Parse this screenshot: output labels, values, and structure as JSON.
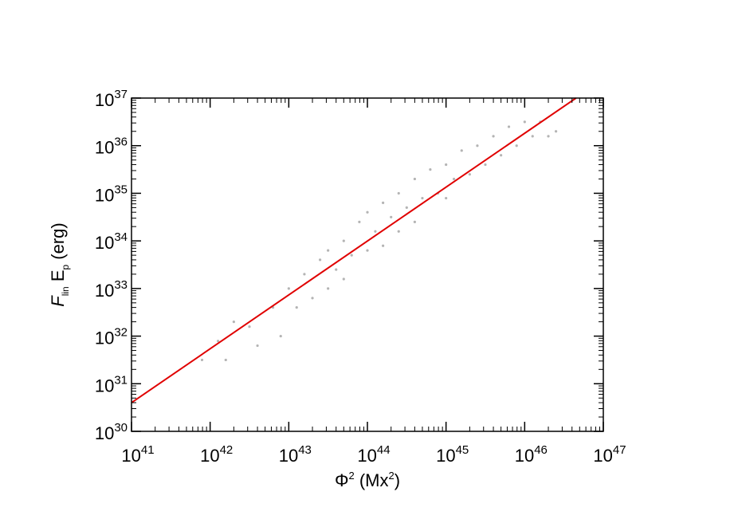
{
  "chart_data": {
    "type": "scatter",
    "xlabel_parts": [
      {
        "text": "Φ"
      },
      {
        "text": "2",
        "sup": true
      },
      {
        "text": " (Mx"
      },
      {
        "text": "2",
        "sup": true
      },
      {
        "text": ")"
      }
    ],
    "ylabel_parts": [
      {
        "text": "F",
        "italic": true
      },
      {
        "text": "lin",
        "sub": true
      },
      {
        "text": " E"
      },
      {
        "text": "p",
        "sub": true
      },
      {
        "text": " (erg)"
      }
    ],
    "xscale": "log",
    "yscale": "log",
    "minor_ticks": true,
    "xlim": [
      1e+41,
      1e+47
    ],
    "ylim": [
      1e+30,
      1e+37
    ],
    "xticks": [
      {
        "value": 1e+41,
        "label": "10",
        "exponent": "41"
      },
      {
        "value": 1e+42,
        "label": "10",
        "exponent": "42"
      },
      {
        "value": 1e+43,
        "label": "10",
        "exponent": "43"
      },
      {
        "value": 1e+44,
        "label": "10",
        "exponent": "44"
      },
      {
        "value": 1e+45,
        "label": "10",
        "exponent": "45"
      },
      {
        "value": 1e+46,
        "label": "10",
        "exponent": "46"
      },
      {
        "value": 1e+47,
        "label": "10",
        "exponent": "47"
      }
    ],
    "yticks": [
      {
        "value": 1e+30,
        "label": "10",
        "exponent": "30"
      },
      {
        "value": 1e+31,
        "label": "10",
        "exponent": "31"
      },
      {
        "value": 1e+32,
        "label": "10",
        "exponent": "32"
      },
      {
        "value": 1e+33,
        "label": "10",
        "exponent": "33"
      },
      {
        "value": 1e+34,
        "label": "10",
        "exponent": "34"
      },
      {
        "value": 1e+35,
        "label": "10",
        "exponent": "35"
      },
      {
        "value": 1e+36,
        "label": "10",
        "exponent": "36"
      },
      {
        "value": 1e+37,
        "label": "10",
        "exponent": "37"
      }
    ],
    "points": {
      "color": "#b4b4b4",
      "x": [
        7.9e+41,
        1.26e+42,
        1.58e+42,
        2e+42,
        3.16e+42,
        4e+42,
        6.3e+42,
        7.9e+42,
        1e+43,
        1.26e+43,
        1.58e+43,
        2e+43,
        2.5e+43,
        3.16e+43,
        3.16e+43,
        4e+43,
        5e+43,
        5e+43,
        6.3e+43,
        7.9e+43,
        1e+44,
        1e+44,
        1.26e+44,
        1.58e+44,
        1.58e+44,
        2e+44,
        2.5e+44,
        2.5e+44,
        3.16e+44,
        4e+44,
        4e+44,
        5e+44,
        6.3e+44,
        7.9e+44,
        1e+45,
        1e+45,
        1.26e+45,
        1.58e+45,
        2e+45,
        2.5e+45,
        3.16e+45,
        4e+45,
        5e+45,
        6.3e+45,
        7.9e+45,
        1e+46,
        1.26e+46,
        1.58e+46,
        2e+46,
        2.5e+46
      ],
      "y": [
        3.16e+31,
        7.9e+31,
        3.16e+31,
        2e+32,
        1.58e+32,
        6.3e+31,
        4e+32,
        1e+32,
        1e+33,
        4e+32,
        2e+33,
        6.3e+32,
        4e+33,
        1e+33,
        6.3e+33,
        2.5e+33,
        1e+34,
        1.58e+33,
        5e+33,
        2.5e+34,
        6.3e+33,
        4e+34,
        1.58e+34,
        6.3e+34,
        7.9e+33,
        3.16e+34,
        1e+35,
        1.58e+34,
        5e+34,
        2e+35,
        2.5e+34,
        7.9e+34,
        3.16e+35,
        1e+35,
        4e+35,
        7.9e+34,
        2e+35,
        7.9e+35,
        2.5e+35,
        1e+36,
        4e+35,
        1.58e+36,
        6.3e+35,
        2.5e+36,
        1e+36,
        3.16e+36,
        1.58e+36,
        3.16e+36,
        1.58e+36,
        2e+36
      ]
    },
    "series": [
      {
        "color": "#e00000",
        "x": [
          1e+41,
          4.5e+46
        ],
        "values": [
          4e+30,
          1e+37
        ]
      }
    ]
  }
}
